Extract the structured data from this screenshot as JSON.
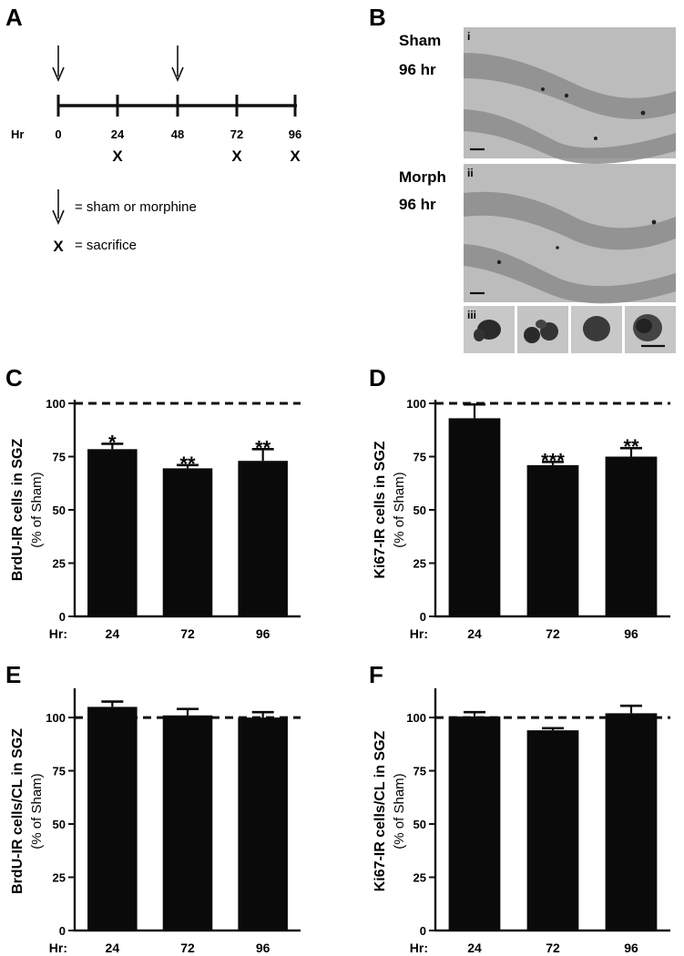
{
  "panel_letters": {
    "a": "A",
    "b": "B",
    "c": "C",
    "d": "D",
    "e": "E",
    "f": "F"
  },
  "timeline": {
    "axis_prefix": "Hr",
    "ticks": [
      "0",
      "24",
      "48",
      "72",
      "96"
    ],
    "injection_ticks": [
      "0",
      "48"
    ],
    "sacrifice_ticks": [
      "24",
      "72",
      "96"
    ],
    "sacrifice_marker": "X",
    "legend_injection": "= sham or morphine",
    "legend_sacrifice": "= sacrifice"
  },
  "micrographs": {
    "sham_line1": "Sham",
    "sham_line2": "96 hr",
    "sham_index": "i",
    "morph_line1": "Morph",
    "morph_line2": "96 hr",
    "morph_index": "ii",
    "inset_index": "iii",
    "image_fill": "#b9b9b9",
    "layer_fill": "#8e8e8e"
  },
  "colors": {
    "bar": "#0a0a0a",
    "axis": "#111111",
    "ref_line": "#111111"
  },
  "chart_data": [
    {
      "id": "C",
      "type": "bar",
      "categories": [
        "24",
        "72",
        "96"
      ],
      "x_prefix": "Hr:",
      "values": [
        78.5,
        69.5,
        73
      ],
      "errors": [
        2.5,
        1.5,
        5.5
      ],
      "significance": [
        "*",
        "**",
        "**"
      ],
      "ylabel_line1": "BrdU-IR cells in SGZ",
      "ylabel_line2": "(% of Sham)",
      "ylim": [
        0,
        100
      ],
      "yticks": [
        0,
        25,
        50,
        75,
        100
      ],
      "reference_line": 100
    },
    {
      "id": "D",
      "type": "bar",
      "categories": [
        "24",
        "72",
        "96"
      ],
      "x_prefix": "Hr:",
      "values": [
        93,
        71,
        75
      ],
      "errors": [
        6.5,
        1.5,
        4
      ],
      "significance": [
        "",
        "***",
        "**"
      ],
      "ylabel_line1": "Ki67-IR cells in SGZ",
      "ylabel_line2": "(% of  Sham)",
      "ylim": [
        0,
        100
      ],
      "yticks": [
        0,
        25,
        50,
        75,
        100
      ],
      "reference_line": 100
    },
    {
      "id": "E",
      "type": "bar",
      "categories": [
        "24",
        "72",
        "96"
      ],
      "x_prefix": "Hr:",
      "values": [
        105,
        101,
        100
      ],
      "errors": [
        2.5,
        3,
        2.5
      ],
      "significance": [
        "",
        "",
        ""
      ],
      "ylabel_line1": "BrdU-IR cells/CL in SGZ",
      "ylabel_line2": "(% of  Sham)",
      "ylim": [
        0,
        112
      ],
      "yticks": [
        0,
        25,
        50,
        75,
        100
      ],
      "reference_line": 100
    },
    {
      "id": "F",
      "type": "bar",
      "categories": [
        "24",
        "72",
        "96"
      ],
      "x_prefix": "Hr:",
      "values": [
        100.5,
        94,
        102
      ],
      "errors": [
        2,
        1,
        3.5
      ],
      "significance": [
        "",
        "",
        ""
      ],
      "ylabel_line1": "Ki67-IR cells/CL in SGZ",
      "ylabel_line2": "(% of Sham)",
      "ylim": [
        0,
        112
      ],
      "yticks": [
        0,
        25,
        50,
        75,
        100
      ],
      "reference_line": 100
    }
  ]
}
